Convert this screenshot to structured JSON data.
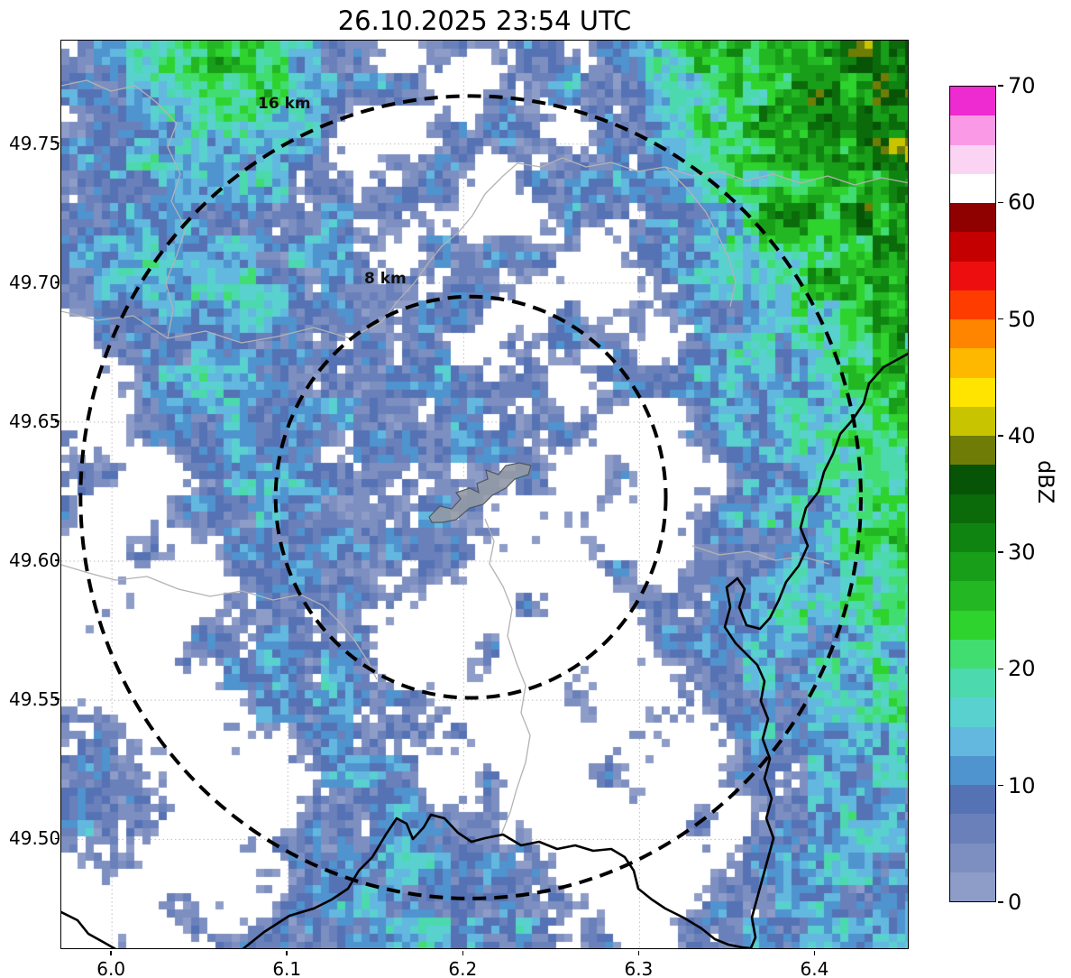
{
  "title": "26.10.2025 23:54 UTC",
  "axes": {
    "x_ticks": [
      "6.0",
      "6.1",
      "6.2",
      "6.3",
      "6.4"
    ],
    "x_tick_values": [
      6.0,
      6.1,
      6.2,
      6.3,
      6.4
    ],
    "xlim": [
      5.9712,
      6.4536
    ],
    "y_ticks": [
      "49.50",
      "49.55",
      "49.60",
      "49.65",
      "49.70",
      "49.75"
    ],
    "y_tick_values": [
      49.5,
      49.55,
      49.6,
      49.65,
      49.7,
      49.75
    ],
    "ylim": [
      49.4602,
      49.7872
    ],
    "grid": true
  },
  "colorbar": {
    "label": "dBZ",
    "ticks": [
      "0",
      "10",
      "20",
      "30",
      "40",
      "50",
      "60",
      "70"
    ],
    "tick_values": [
      0,
      10,
      20,
      30,
      40,
      50,
      60,
      70
    ],
    "min": 0,
    "max": 70,
    "step": 2.5,
    "stops": [
      {
        "v": 0.0,
        "c": "#8e9cc8"
      },
      {
        "v": 2.5,
        "c": "#7d8fc0"
      },
      {
        "v": 5.0,
        "c": "#6a80ba"
      },
      {
        "v": 7.5,
        "c": "#5572b4"
      },
      {
        "v": 10.0,
        "c": "#4f93cf"
      },
      {
        "v": 12.5,
        "c": "#63b8e0"
      },
      {
        "v": 15.0,
        "c": "#59d1cf"
      },
      {
        "v": 17.5,
        "c": "#4cd9ad"
      },
      {
        "v": 20.0,
        "c": "#41dd71"
      },
      {
        "v": 22.5,
        "c": "#2ed32e"
      },
      {
        "v": 25.0,
        "c": "#23b823"
      },
      {
        "v": 27.5,
        "c": "#199e19"
      },
      {
        "v": 30.0,
        "c": "#108410"
      },
      {
        "v": 32.5,
        "c": "#0b6b0b"
      },
      {
        "v": 35.0,
        "c": "#075407"
      },
      {
        "v": 37.5,
        "c": "#6f7d07"
      },
      {
        "v": 40.0,
        "c": "#c9c400"
      },
      {
        "v": 42.5,
        "c": "#ffe400"
      },
      {
        "v": 45.0,
        "c": "#ffb800"
      },
      {
        "v": 47.5,
        "c": "#ff8400"
      },
      {
        "v": 50.0,
        "c": "#ff3c00"
      },
      {
        "v": 52.5,
        "c": "#ed0f0f"
      },
      {
        "v": 55.0,
        "c": "#c40000"
      },
      {
        "v": 57.5,
        "c": "#8f0000"
      },
      {
        "v": 60.0,
        "c": "#ffffff"
      },
      {
        "v": 62.5,
        "c": "#fcd4f3"
      },
      {
        "v": 65.0,
        "c": "#fa9ae6"
      },
      {
        "v": 67.5,
        "c": "#ee2bd0"
      }
    ]
  },
  "rings": [
    {
      "label": "16 km",
      "radius_km": 16
    },
    {
      "label": "8 km",
      "radius_km": 8
    }
  ],
  "rings_center": {
    "lon": 6.204,
    "lat": 49.623
  },
  "chart_data": {
    "type": "heatmap",
    "title": "26.10.2025 23:54 UTC",
    "units": "dBZ",
    "x_range": [
      5.9712,
      6.4536
    ],
    "y_range": [
      49.4602,
      49.7872
    ],
    "legend_position": "right",
    "range_rings_km": [
      8,
      16
    ],
    "ring_center": {
      "lon": 6.204,
      "lat": 49.623
    },
    "grid_rows": 22,
    "grid_cols": 21,
    "no_echo_value": null,
    "values_dbz": [
      [
        9,
        10,
        14,
        20,
        26,
        22,
        12,
        9,
        null,
        8,
        7,
        9,
        null,
        12,
        18,
        22,
        25,
        28,
        32,
        34,
        35
      ],
      [
        8,
        9,
        12,
        16,
        22,
        18,
        10,
        8,
        6,
        null,
        null,
        8,
        10,
        8,
        14,
        20,
        24,
        27,
        30,
        33,
        34
      ],
      [
        7,
        9,
        10,
        14,
        18,
        14,
        10,
        null,
        null,
        6,
        8,
        10,
        null,
        8,
        12,
        18,
        22,
        26,
        29,
        32,
        33
      ],
      [
        8,
        10,
        12,
        16,
        15,
        12,
        9,
        null,
        6,
        8,
        null,
        8,
        6,
        8,
        10,
        16,
        20,
        24,
        28,
        31,
        33
      ],
      [
        7,
        8,
        10,
        14,
        12,
        10,
        8,
        6,
        8,
        6,
        null,
        null,
        8,
        6,
        10,
        14,
        18,
        38,
        26,
        30,
        32
      ],
      [
        8,
        10,
        16,
        14,
        12,
        10,
        8,
        6,
        null,
        6,
        8,
        6,
        null,
        null,
        8,
        12,
        16,
        20,
        24,
        28,
        30
      ],
      [
        7,
        9,
        12,
        10,
        14,
        12,
        8,
        6,
        6,
        8,
        6,
        null,
        6,
        null,
        8,
        10,
        14,
        18,
        22,
        26,
        28
      ],
      [
        null,
        6,
        8,
        10,
        12,
        10,
        8,
        6,
        8,
        6,
        null,
        6,
        8,
        6,
        null,
        8,
        12,
        16,
        20,
        24,
        26
      ],
      [
        null,
        null,
        8,
        10,
        16,
        12,
        8,
        10,
        6,
        8,
        6,
        6,
        null,
        6,
        8,
        10,
        12,
        16,
        20,
        22,
        24
      ],
      [
        6,
        null,
        6,
        8,
        10,
        12,
        10,
        8,
        6,
        8,
        6,
        8,
        6,
        null,
        null,
        8,
        10,
        14,
        18,
        22,
        24
      ],
      [
        8,
        6,
        null,
        6,
        8,
        10,
        8,
        6,
        8,
        6,
        8,
        6,
        null,
        6,
        null,
        null,
        8,
        12,
        16,
        20,
        22
      ],
      [
        6,
        null,
        null,
        6,
        8,
        10,
        8,
        6,
        6,
        8,
        6,
        null,
        6,
        null,
        null,
        8,
        10,
        12,
        16,
        20,
        22
      ],
      [
        null,
        null,
        6,
        null,
        6,
        8,
        6,
        8,
        6,
        6,
        null,
        null,
        null,
        6,
        null,
        6,
        8,
        12,
        14,
        18,
        20
      ],
      [
        null,
        6,
        null,
        null,
        6,
        8,
        10,
        8,
        6,
        null,
        null,
        6,
        null,
        null,
        6,
        8,
        10,
        14,
        16,
        18,
        20
      ],
      [
        null,
        null,
        null,
        6,
        8,
        10,
        8,
        6,
        null,
        null,
        6,
        null,
        null,
        null,
        6,
        8,
        12,
        10,
        14,
        16,
        18
      ],
      [
        null,
        null,
        null,
        null,
        6,
        8,
        10,
        8,
        6,
        null,
        null,
        null,
        6,
        null,
        null,
        6,
        8,
        10,
        12,
        14,
        16
      ],
      [
        6,
        8,
        null,
        null,
        null,
        6,
        8,
        6,
        8,
        6,
        null,
        null,
        null,
        null,
        6,
        null,
        8,
        10,
        12,
        14,
        14
      ],
      [
        8,
        10,
        8,
        null,
        null,
        null,
        6,
        8,
        6,
        null,
        6,
        null,
        null,
        6,
        null,
        null,
        6,
        8,
        10,
        12,
        14
      ],
      [
        6,
        8,
        6,
        null,
        null,
        null,
        6,
        8,
        10,
        8,
        6,
        null,
        null,
        null,
        null,
        6,
        null,
        8,
        10,
        12,
        12
      ],
      [
        null,
        6,
        null,
        null,
        null,
        6,
        8,
        10,
        12,
        10,
        8,
        6,
        null,
        null,
        null,
        null,
        6,
        8,
        10,
        10,
        12
      ],
      [
        null,
        null,
        null,
        6,
        null,
        6,
        8,
        12,
        10,
        12,
        8,
        6,
        6,
        null,
        null,
        6,
        8,
        10,
        12,
        14,
        12
      ],
      [
        null,
        null,
        6,
        null,
        6,
        8,
        10,
        10,
        12,
        10,
        8,
        8,
        null,
        6,
        null,
        8,
        10,
        12,
        14,
        12,
        14
      ]
    ]
  }
}
